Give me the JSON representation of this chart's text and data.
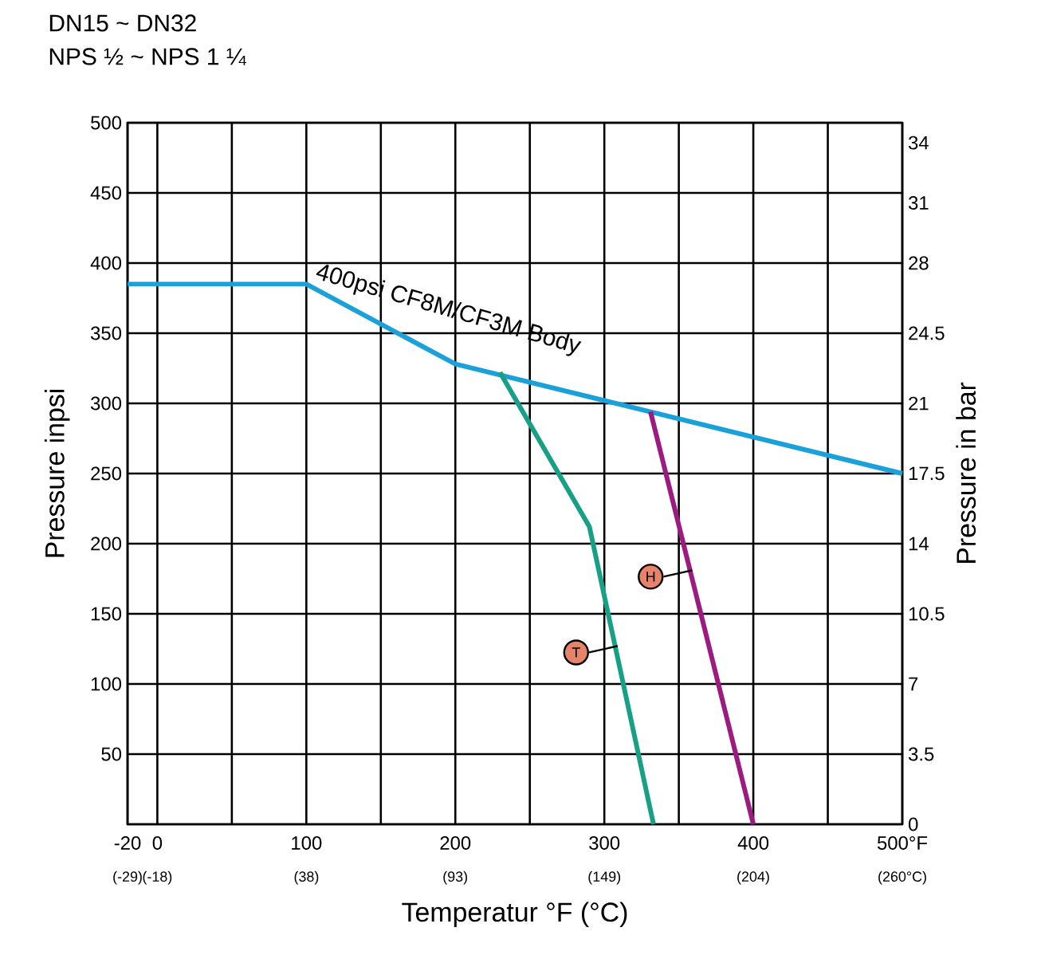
{
  "chart_data": {
    "type": "line",
    "title": "DN15 ~ DN32",
    "subtitle": "NPS ½ ~ NPS 1 ¼",
    "xlabel": "Temperatur °F (°C)",
    "ylabel": "Pressure inpsi",
    "y2label": "Pressure in bar",
    "xlim": [
      -20,
      500
    ],
    "ylim": [
      0,
      500
    ],
    "y2lim": [
      0,
      35
    ],
    "x2lim": [
      -28.9,
      260
    ],
    "xticks": [
      -20,
      0,
      {
        "value": 50,
        "label": null
      },
      100,
      {
        "value": 150,
        "label": null
      },
      200,
      {
        "value": 250,
        "label": null
      },
      300,
      {
        "value": 350,
        "label": null
      },
      400,
      {
        "value": 450,
        "label": null
      },
      {
        "value": 500,
        "label": "500°F"
      }
    ],
    "x2ticks": [
      {
        "value": -28.9,
        "label": "(-29)"
      },
      {
        "value": -17.8,
        "label": "(-18)"
      },
      {
        "value": 37.8,
        "label": "(38)"
      },
      {
        "value": 93.3,
        "label": "(93)"
      },
      {
        "value": 148.9,
        "label": "(149)"
      },
      {
        "value": 204.4,
        "label": "(204)"
      },
      {
        "value": 260,
        "label": "(260°C)"
      }
    ],
    "yticks": [
      {
        "value": 0,
        "label": null
      },
      50,
      100,
      150,
      200,
      250,
      300,
      350,
      400,
      450,
      500
    ],
    "y2ticks": [
      0,
      3.5,
      7,
      10.5,
      14,
      17.5,
      21,
      24.5,
      28,
      31,
      34
    ],
    "grid": true,
    "marker": "none",
    "line_style": "solid",
    "series": [
      {
        "color": "#1ba1d9",
        "x": [
          -20,
          100,
          200,
          500
        ],
        "values": [
          385,
          385,
          328,
          250
        ]
      },
      {
        "color": "#17a085",
        "x": [
          230,
          290,
          333
        ],
        "values": [
          322,
          212,
          0
        ]
      },
      {
        "color": "#9b1b80",
        "x": [
          331,
          400
        ],
        "values": [
          294,
          0
        ]
      }
    ],
    "annotations": [
      "400psi CF8M/CF3M Body",
      {
        "text": "T",
        "x": 309,
        "y": 127
      },
      {
        "text": "H",
        "x": 359,
        "y": 181
      }
    ]
  }
}
